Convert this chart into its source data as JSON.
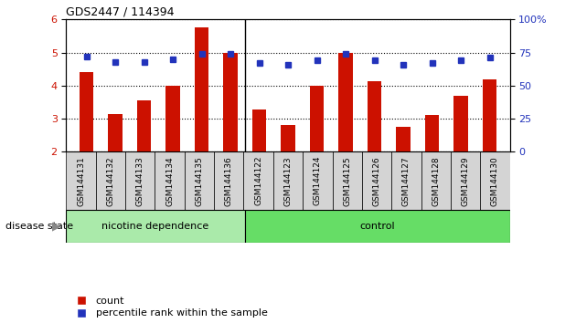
{
  "title": "GDS2447 / 114394",
  "categories": [
    "GSM144131",
    "GSM144132",
    "GSM144133",
    "GSM144134",
    "GSM144135",
    "GSM144136",
    "GSM144122",
    "GSM144123",
    "GSM144124",
    "GSM144125",
    "GSM144126",
    "GSM144127",
    "GSM144128",
    "GSM144129",
    "GSM144130"
  ],
  "count_values": [
    4.4,
    3.15,
    3.55,
    4.0,
    5.75,
    5.0,
    3.28,
    2.82,
    4.0,
    5.0,
    4.12,
    2.75,
    3.1,
    3.7,
    4.2
  ],
  "percentile_values": [
    72,
    68,
    68,
    70,
    74,
    74,
    67,
    66,
    69,
    74,
    69,
    66,
    67,
    69,
    71
  ],
  "ylim_left": [
    2,
    6
  ],
  "ylim_right": [
    0,
    100
  ],
  "yticks_left": [
    2,
    3,
    4,
    5,
    6
  ],
  "yticks_right": [
    0,
    25,
    50,
    75,
    100
  ],
  "bar_color": "#cc1100",
  "dot_color": "#2233bb",
  "group_labels": [
    "nicotine dependence",
    "control"
  ],
  "group_colors": [
    "#aaeaaa",
    "#66dd66"
  ],
  "disease_state_label": "disease state",
  "legend_count": "count",
  "legend_percentile": "percentile rank within the sample",
  "nicotine_count": 6,
  "control_count": 9,
  "bar_width": 0.5
}
